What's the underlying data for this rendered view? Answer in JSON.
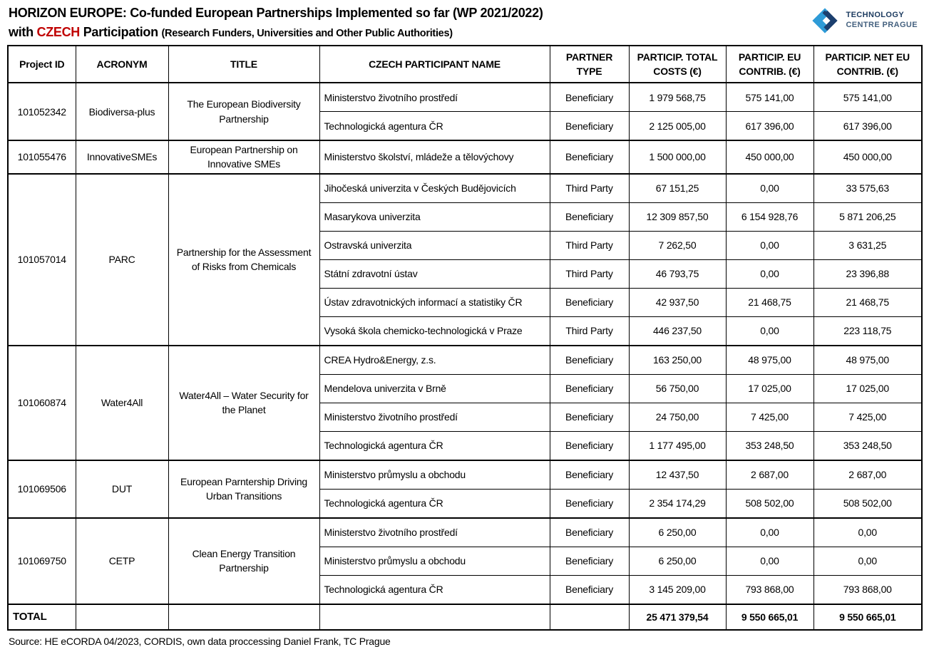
{
  "header": {
    "title_line1": "HORIZON EUROPE: Co-funded European Partnerships Implemented so far (WP 2021/2022)",
    "title_line2_prefix": "with ",
    "title_line2_highlight": "CZECH",
    "title_line2_mid": " Participation ",
    "title_line2_paren": "(Research Funders, Universities and Other Public Authorities)",
    "logo": {
      "icon": "tc-prague-logo-icon",
      "line1": "TECHNOLOGY",
      "line2": "CENTRE PRAGUE"
    }
  },
  "colors": {
    "highlight_red": "#c00000",
    "logo_light_blue": "#2e9bd7",
    "logo_dark_blue": "#1b3f6e",
    "logo_text_dark": "#1b3a5f",
    "logo_text_muted": "#44617f"
  },
  "table": {
    "columns": [
      {
        "label": "Project ID"
      },
      {
        "label": "ACRONYM"
      },
      {
        "label": "TITLE"
      },
      {
        "label": "CZECH PARTICIPANT NAME"
      },
      {
        "label": "PARTNER TYPE"
      },
      {
        "label": "PARTICIP. TOTAL COSTS (€)"
      },
      {
        "label": "PARTICIP. EU CONTRIB. (€)"
      },
      {
        "label": "PARTICIP. NET EU CONTRIB. (€)"
      }
    ],
    "groups": [
      {
        "project_id": "101052342",
        "acronym": "Biodiversa-plus",
        "title": "The European Biodiversity Partnership",
        "rows": [
          {
            "participant": "Ministerstvo životního prostředí",
            "partner_type": "Beneficiary",
            "total_costs": "1 979 568,75",
            "eu_contrib": "575 141,00",
            "net_eu_contrib": "575 141,00"
          },
          {
            "participant": "Technologická agentura ČR",
            "partner_type": "Beneficiary",
            "total_costs": "2 125 005,00",
            "eu_contrib": "617 396,00",
            "net_eu_contrib": "617 396,00"
          }
        ]
      },
      {
        "project_id": "101055476",
        "acronym": "InnovativeSMEs",
        "title": "European Partnership on Innovative SMEs",
        "rows": [
          {
            "participant": "Ministerstvo školství, mládeže a tělovýchovy",
            "partner_type": "Beneficiary",
            "total_costs": "1 500 000,00",
            "eu_contrib": "450 000,00",
            "net_eu_contrib": "450 000,00"
          }
        ]
      },
      {
        "project_id": "101057014",
        "acronym": "PARC",
        "title": "Partnership for the Assessment of Risks from Chemicals",
        "rows": [
          {
            "participant": "Jihočeská univerzita v Českých Budějovicích",
            "partner_type": "Third Party",
            "total_costs": "67 151,25",
            "eu_contrib": "0,00",
            "net_eu_contrib": "33 575,63"
          },
          {
            "participant": "Masarykova univerzita",
            "partner_type": "Beneficiary",
            "total_costs": "12 309 857,50",
            "eu_contrib": "6 154 928,76",
            "net_eu_contrib": "5 871 206,25"
          },
          {
            "participant": "Ostravská univerzita",
            "partner_type": "Third Party",
            "total_costs": "7 262,50",
            "eu_contrib": "0,00",
            "net_eu_contrib": "3 631,25"
          },
          {
            "participant": "Státní zdravotní ústav",
            "partner_type": "Third Party",
            "total_costs": "46 793,75",
            "eu_contrib": "0,00",
            "net_eu_contrib": "23 396,88"
          },
          {
            "participant": "Ústav zdravotnických informací a statistiky ČR",
            "partner_type": "Beneficiary",
            "total_costs": "42 937,50",
            "eu_contrib": "21 468,75",
            "net_eu_contrib": "21 468,75"
          },
          {
            "participant": "Vysoká škola chemicko-technologická v Praze",
            "partner_type": "Third Party",
            "total_costs": "446 237,50",
            "eu_contrib": "0,00",
            "net_eu_contrib": "223 118,75"
          }
        ]
      },
      {
        "project_id": "101060874",
        "acronym": "Water4All",
        "title": "Water4All – Water Security for the Planet",
        "rows": [
          {
            "participant": "CREA Hydro&Energy, z.s.",
            "partner_type": "Beneficiary",
            "total_costs": "163 250,00",
            "eu_contrib": "48 975,00",
            "net_eu_contrib": "48 975,00"
          },
          {
            "participant": "Mendelova univerzita v Brně",
            "partner_type": "Beneficiary",
            "total_costs": "56 750,00",
            "eu_contrib": "17 025,00",
            "net_eu_contrib": "17 025,00"
          },
          {
            "participant": "Ministerstvo životního prostředí",
            "partner_type": "Beneficiary",
            "total_costs": "24 750,00",
            "eu_contrib": "7 425,00",
            "net_eu_contrib": "7 425,00"
          },
          {
            "participant": "Technologická agentura ČR",
            "partner_type": "Beneficiary",
            "total_costs": "1 177 495,00",
            "eu_contrib": "353 248,50",
            "net_eu_contrib": "353 248,50"
          }
        ]
      },
      {
        "project_id": "101069506",
        "acronym": "DUT",
        "title": "European Parntership Driving Urban Transitions",
        "rows": [
          {
            "participant": "Ministerstvo průmyslu a obchodu",
            "partner_type": "Beneficiary",
            "total_costs": "12 437,50",
            "eu_contrib": "2 687,00",
            "net_eu_contrib": "2 687,00"
          },
          {
            "participant": "Technologická agentura ČR",
            "partner_type": "Beneficiary",
            "total_costs": "2 354 174,29",
            "eu_contrib": "508 502,00",
            "net_eu_contrib": "508 502,00"
          }
        ]
      },
      {
        "project_id": "101069750",
        "acronym": "CETP",
        "title": "Clean Energy Transition Partnership",
        "rows": [
          {
            "participant": "Ministerstvo životního prostředí",
            "partner_type": "Beneficiary",
            "total_costs": "6 250,00",
            "eu_contrib": "0,00",
            "net_eu_contrib": "0,00"
          },
          {
            "participant": "Ministerstvo průmyslu a obchodu",
            "partner_type": "Beneficiary",
            "total_costs": "6 250,00",
            "eu_contrib": "0,00",
            "net_eu_contrib": "0,00"
          },
          {
            "participant": "Technologická agentura ČR",
            "partner_type": "Beneficiary",
            "total_costs": "3 145 209,00",
            "eu_contrib": "793 868,00",
            "net_eu_contrib": "793 868,00"
          }
        ]
      }
    ],
    "total": {
      "label": "TOTAL",
      "total_costs": "25 471 379,54",
      "eu_contrib": "9 550 665,01",
      "net_eu_contrib": "9 550 665,01"
    }
  },
  "footer": {
    "source": "Source: HE eCORDA 04/2023, CORDIS, own data proccessing Daniel Frank, TC Prague"
  }
}
